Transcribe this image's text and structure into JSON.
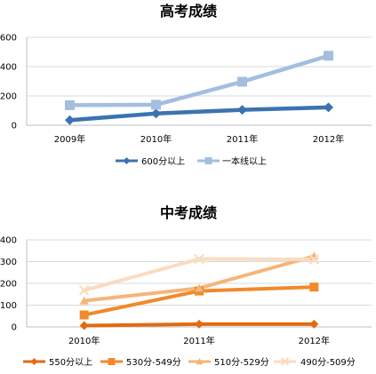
{
  "chart_data": [
    {
      "type": "line",
      "title": "高考成绩",
      "categories": [
        "2009年",
        "2010年",
        "2011年",
        "2012年"
      ],
      "ylim": [
        0,
        600
      ],
      "yticks": [
        0,
        200,
        400,
        600
      ],
      "grid": true,
      "legend": "bottom",
      "series": [
        {
          "name": "600分以上",
          "values": [
            35,
            80,
            105,
            122
          ],
          "color": "#3b73b0",
          "marker": "diamond"
        },
        {
          "name": "一本线以上",
          "values": [
            137,
            140,
            297,
            474
          ],
          "color": "#a3bedf",
          "marker": "square"
        }
      ]
    },
    {
      "type": "line",
      "title": "中考成绩",
      "categories": [
        "2010年",
        "2011年",
        "2012年"
      ],
      "ylim": [
        0,
        400
      ],
      "yticks": [
        0,
        100,
        200,
        300,
        400
      ],
      "grid": true,
      "legend": "bottom",
      "series": [
        {
          "name": "550分以上",
          "values": [
            6,
            13,
            13
          ],
          "color": "#e26a11",
          "marker": "diamond"
        },
        {
          "name": "530分-549分",
          "values": [
            55,
            165,
            183
          ],
          "color": "#f08a2a",
          "marker": "square"
        },
        {
          "name": "510分-529分",
          "values": [
            120,
            178,
            325
          ],
          "color": "#f6b579",
          "marker": "triangle"
        },
        {
          "name": "490分-509分",
          "values": [
            168,
            312,
            310
          ],
          "color": "#f9dcc0",
          "marker": "x"
        }
      ]
    }
  ]
}
